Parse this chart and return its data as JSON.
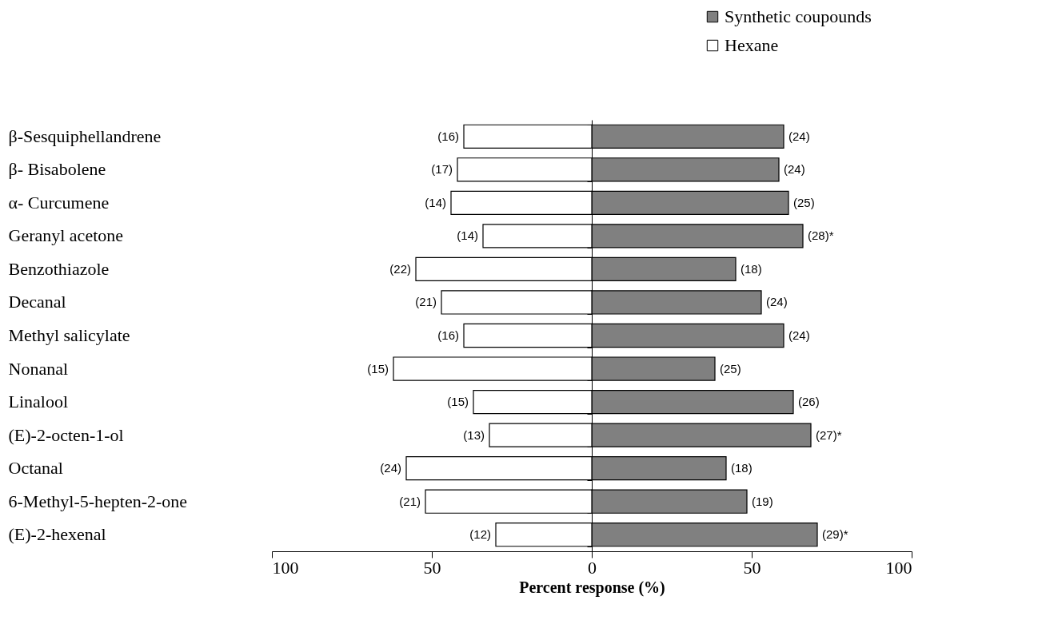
{
  "chart_data": {
    "type": "bar",
    "orientation": "horizontal",
    "stacked": true,
    "xlabel": "Percent response (%)",
    "categories": [
      "β-Sesquiphellandrene",
      "β- Bisabolene",
      "α- Curcumene",
      "Geranyl acetone",
      "Benzothiazole",
      "Decanal",
      "Methyl salicylate",
      "Nonanal",
      "Linalool",
      "(E)-2-octen-1-ol",
      "Octanal",
      "6-Methyl-5-hepten-2-one",
      "(E)-2-hexenal"
    ],
    "series": [
      {
        "name": "Synthetic coupounds",
        "color": "#808080",
        "values": [
          60,
          58.5,
          61.5,
          66,
          45,
          53,
          60,
          38.5,
          63,
          68.5,
          42,
          48.5,
          70.5
        ]
      },
      {
        "name": "Hexane",
        "color": "#ffffff",
        "values": [
          -40,
          -42,
          -44,
          -34,
          -55,
          -47,
          -40,
          -62,
          -37,
          -32,
          -58,
          -52,
          -30
        ]
      }
    ],
    "annotations": [
      {
        "text": "(24)",
        "x": 60,
        "y": "β-Sesquiphellandrene"
      },
      {
        "text": "(24)",
        "x": 58.5,
        "y": "β- Bisabolene"
      },
      {
        "text": "(25)",
        "x": 61.5,
        "y": "α- Curcumene"
      },
      {
        "text": "(28)*",
        "x": 66,
        "y": "Geranyl acetone"
      },
      {
        "text": "(18)",
        "x": 45,
        "y": "Benzothiazole"
      },
      {
        "text": "(24)",
        "x": 53,
        "y": "Decanal"
      },
      {
        "text": "(24)",
        "x": 60,
        "y": "Methyl salicylate"
      },
      {
        "text": "(25)",
        "x": 38.5,
        "y": "Nonanal"
      },
      {
        "text": "(26)",
        "x": 63,
        "y": "Linalool"
      },
      {
        "text": "(27)*",
        "x": 68.5,
        "y": "(E)-2-octen-1-ol"
      },
      {
        "text": "(18)",
        "x": 42,
        "y": "Octanal"
      },
      {
        "text": "(19)",
        "x": 48.5,
        "y": "6-Methyl-5-hepten-2-one"
      },
      {
        "text": "(29)*",
        "x": 70.5,
        "y": "(E)-2-hexenal"
      },
      {
        "text": "(16)",
        "x": -40,
        "y": "β-Sesquiphellandrene"
      },
      {
        "text": "(17)",
        "x": -42,
        "y": "β- Bisabolene"
      },
      {
        "text": "(14)",
        "x": -44,
        "y": "α- Curcumene"
      },
      {
        "text": "(14)",
        "x": -34,
        "y": "Geranyl acetone"
      },
      {
        "text": "(22)",
        "x": -55,
        "y": "Benzothiazole"
      },
      {
        "text": "(21)",
        "x": -47,
        "y": "Decanal"
      },
      {
        "text": "(16)",
        "x": -40,
        "y": "Methyl salicylate"
      },
      {
        "text": "(15)",
        "x": -62,
        "y": "Nonanal"
      },
      {
        "text": "(15)",
        "x": -37,
        "y": "Linalool"
      },
      {
        "text": "(13)",
        "x": -32,
        "y": "(E)-2-octen-1-ol"
      },
      {
        "text": "(24)",
        "x": -58,
        "y": "Octanal"
      },
      {
        "text": "(21)",
        "x": -52,
        "y": "6-Methyl-5-hepten-2-one"
      },
      {
        "text": "(12)",
        "x": -30,
        "y": "(E)-2-hexenal"
      }
    ],
    "xlim": [
      -100,
      100
    ],
    "xticks": [
      {
        "value": -100,
        "label": "100"
      },
      {
        "value": -50,
        "label": "50"
      },
      0,
      50,
      100
    ],
    "ref_lines": [
      {
        "axis": "x",
        "value": 0
      }
    ],
    "grid": false,
    "legend": "top right"
  }
}
